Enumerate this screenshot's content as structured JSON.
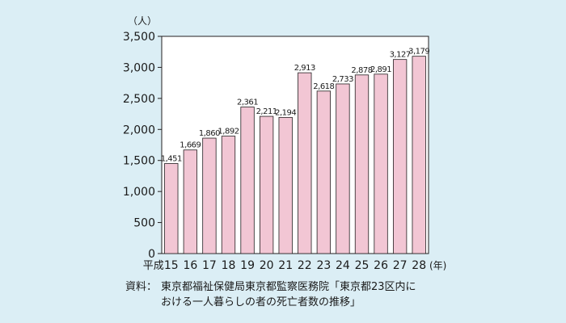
{
  "chart_data": {
    "type": "bar",
    "x_prefix": "平成",
    "categories": [
      "15",
      "16",
      "17",
      "18",
      "19",
      "20",
      "21",
      "22",
      "23",
      "24",
      "25",
      "26",
      "27",
      "28"
    ],
    "x_unit": "(年)",
    "values": [
      1451,
      1669,
      1860,
      1892,
      2361,
      2211,
      2194,
      2913,
      2618,
      2733,
      2878,
      2891,
      3127,
      3179
    ],
    "value_labels": [
      "1,451",
      "1,669",
      "1,860",
      "1,892",
      "2,361",
      "2,211",
      "2,194",
      "2,913",
      "2,618",
      "2,733",
      "2,878",
      "2,891",
      "3,127",
      "3,179"
    ],
    "y_unit": "（人）",
    "yticks": [
      "3,500",
      "3,000",
      "2,500",
      "2,000",
      "1,500",
      "1,000",
      "500",
      "0"
    ],
    "ylim": [
      0,
      3500
    ],
    "grid": false,
    "colors": {
      "bar_fill": "#f2c6d4",
      "bar_stroke": "#231f20",
      "plot_bg": "#ffffff",
      "page_bg": "#dbeef5"
    }
  },
  "source": {
    "label": "資料：",
    "line1": "東京都福祉保健局東京都監察医務院「東京都23区内に",
    "line2": "おける一人暮らしの者の死亡者数の推移」"
  }
}
